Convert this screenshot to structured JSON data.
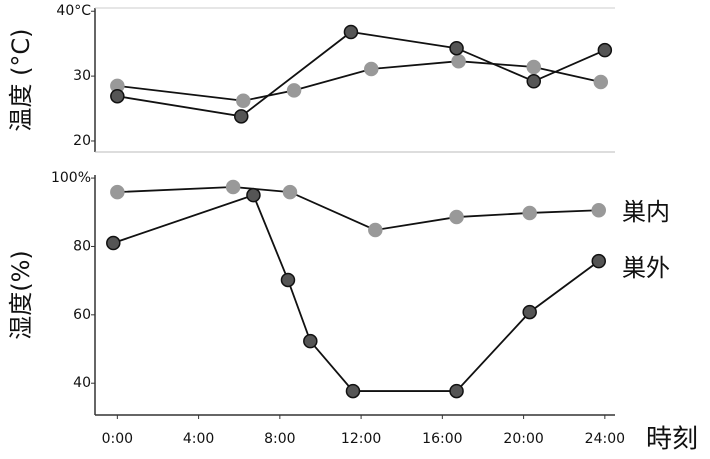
{
  "chart_data": [
    {
      "type": "line",
      "y_label": "温度 (°C)",
      "xlim": [
        -1.1,
        24.5
      ],
      "ylim": [
        18.3,
        40.5
      ],
      "yticks": [
        20,
        30,
        {
          "value": 40,
          "label": "40°C"
        }
      ],
      "series": [
        {
          "color": "#999999",
          "x": [
            0,
            6.2,
            8.7,
            12.5,
            16.8,
            20.5,
            23.8
          ],
          "values": [
            28.5,
            26.2,
            27.8,
            31.1,
            32.3,
            31.4,
            29.1
          ]
        },
        {
          "color": "#555555",
          "x": [
            0,
            6.1,
            11.5,
            16.7,
            20.5,
            24
          ],
          "values": [
            26.9,
            23.8,
            36.8,
            34.3,
            29.2,
            34
          ]
        }
      ]
    },
    {
      "type": "line",
      "y_label": "湿度(%)",
      "x_label": "時刻",
      "xlim": [
        -1.1,
        24.5
      ],
      "ylim": [
        30.7,
        100.9
      ],
      "xticks": [
        {
          "value": 0,
          "label": "0:00"
        },
        {
          "value": 4,
          "label": "4:00"
        },
        {
          "value": 8,
          "label": "8:00"
        },
        {
          "value": 12,
          "label": "12:00"
        },
        {
          "value": 16,
          "label": "16:00"
        },
        {
          "value": 20,
          "label": "20:00"
        },
        {
          "value": 24,
          "label": "24:00"
        }
      ],
      "yticks": [
        40,
        60,
        80,
        {
          "value": 100,
          "label": "100%"
        }
      ],
      "series": [
        {
          "name": "巣内",
          "color": "#999999",
          "x": [
            0,
            5.7,
            8.5,
            12.7,
            16.7,
            20.3,
            23.7
          ],
          "values": [
            95.9,
            97.4,
            95.9,
            84.8,
            88.6,
            89.8,
            90.6
          ]
        },
        {
          "name": "巣外",
          "color": "#555555",
          "x": [
            -0.2,
            6.7,
            8.4,
            9.5,
            11.6,
            16.7,
            20.3,
            23.7
          ],
          "values": [
            81,
            95,
            70.2,
            52.3,
            37.7,
            37.7,
            60.8,
            75.7
          ]
        }
      ]
    }
  ]
}
